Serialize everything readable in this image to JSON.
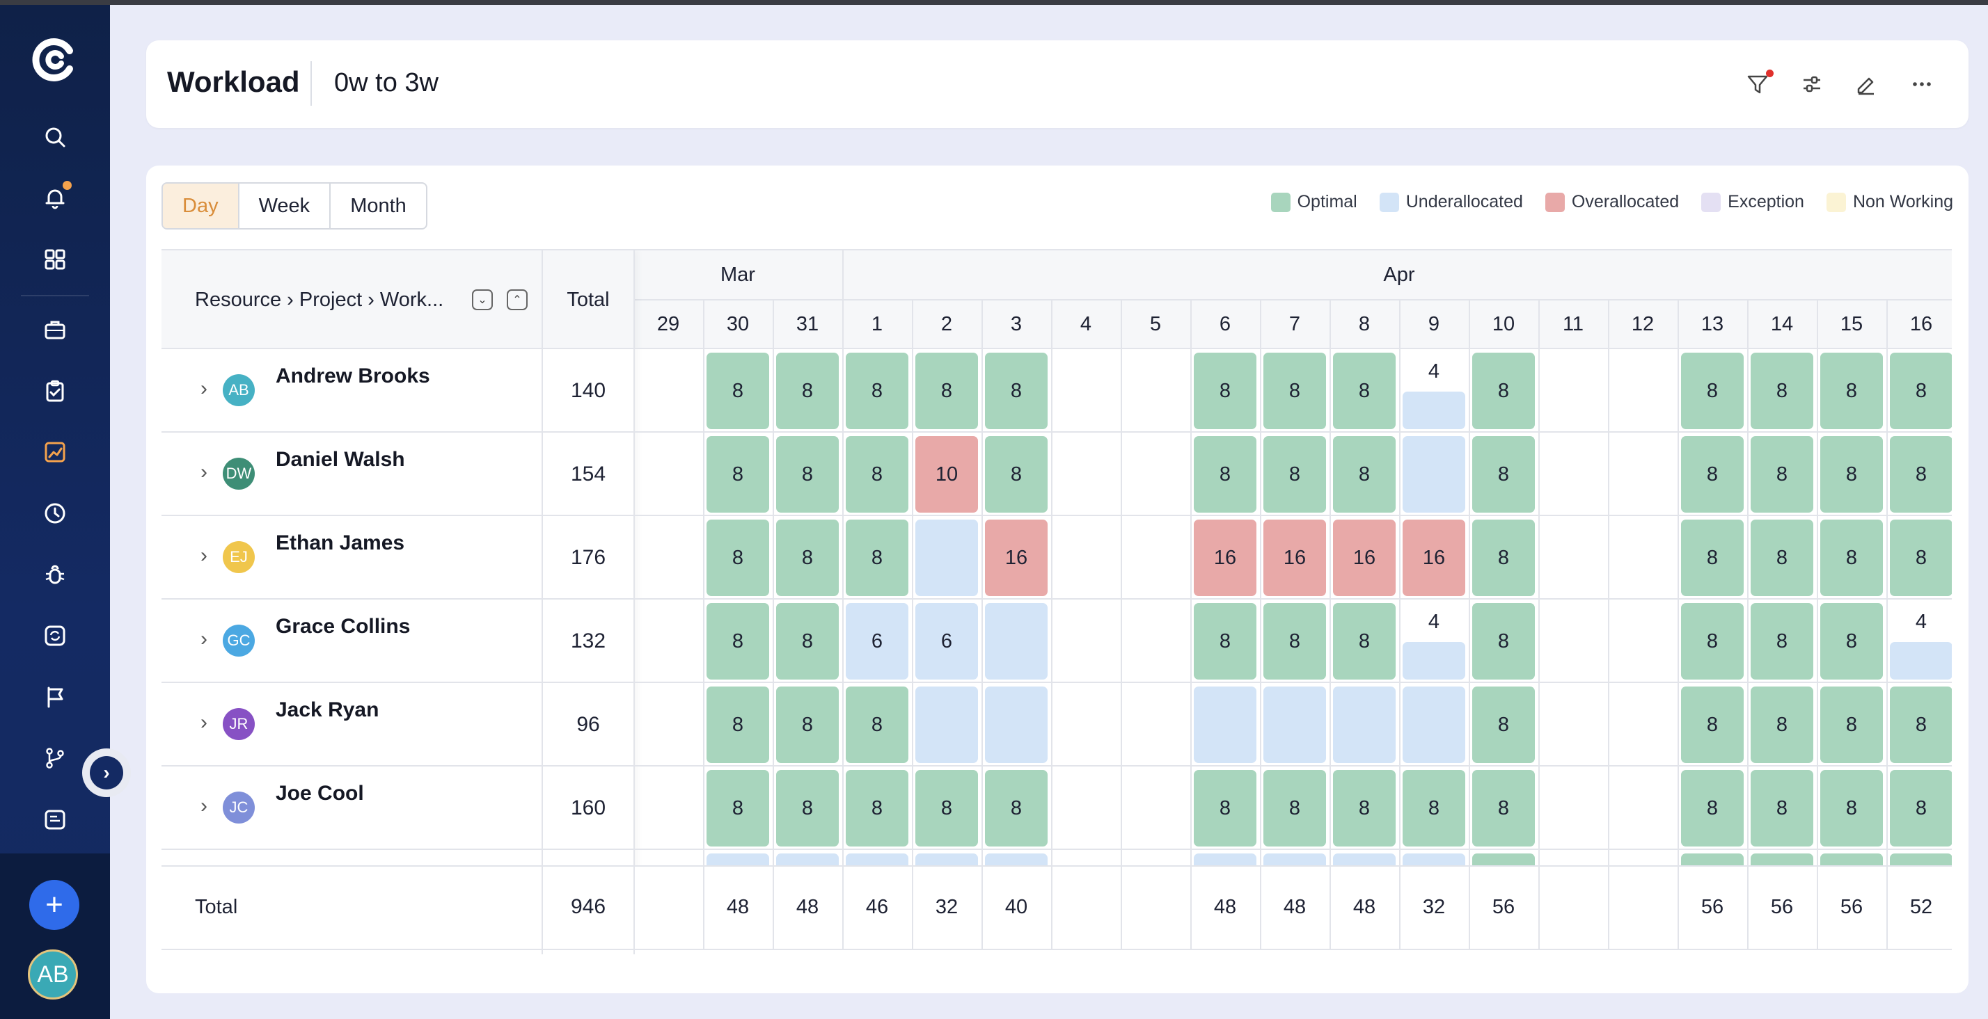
{
  "header": {
    "title": "Workload",
    "range": "0w to 3w"
  },
  "view_toggle": {
    "options": [
      "Day",
      "Week",
      "Month"
    ],
    "active": "Day"
  },
  "legend": [
    {
      "label": "Optimal",
      "color": "#a8d5bd"
    },
    {
      "label": "Underallocated",
      "color": "#d3e4f7"
    },
    {
      "label": "Overallocated",
      "color": "#e8a9a8"
    },
    {
      "label": "Exception",
      "color": "#e4e0f3"
    },
    {
      "label": "Non Working",
      "color": "#fbf3d4"
    }
  ],
  "table": {
    "resource_header": "Resource › Project › Work...",
    "total_header": "Total",
    "months": [
      {
        "label": "Mar",
        "start_index": 0,
        "span": 3
      },
      {
        "label": "Apr",
        "start_index": 3,
        "span": 16
      }
    ],
    "days": [
      "29",
      "30",
      "31",
      "1",
      "2",
      "3",
      "4",
      "5",
      "6",
      "7",
      "8",
      "9",
      "10",
      "11",
      "12",
      "13",
      "14",
      "15",
      "16"
    ],
    "rows": [
      {
        "name": "Andrew Brooks",
        "initials": "AB",
        "avatar_color": "#46b1c4",
        "total": "140",
        "cells": [
          [
            null,
            ""
          ],
          [
            "o",
            "8"
          ],
          [
            "o",
            "8"
          ],
          [
            "o",
            "8"
          ],
          [
            "o",
            "8"
          ],
          [
            "o",
            "8"
          ],
          [
            null,
            ""
          ],
          [
            null,
            ""
          ],
          [
            "o",
            "8"
          ],
          [
            "o",
            "8"
          ],
          [
            "o",
            "8"
          ],
          [
            "up",
            "4"
          ],
          [
            "o",
            "8"
          ],
          [
            null,
            ""
          ],
          [
            null,
            ""
          ],
          [
            "o",
            "8"
          ],
          [
            "o",
            "8"
          ],
          [
            "o",
            "8"
          ],
          [
            "o",
            "8"
          ]
        ]
      },
      {
        "name": "Daniel Walsh",
        "initials": "DW",
        "avatar_color": "#3e8e76",
        "total": "154",
        "cells": [
          [
            null,
            ""
          ],
          [
            "o",
            "8"
          ],
          [
            "o",
            "8"
          ],
          [
            "o",
            "8"
          ],
          [
            "x",
            "10"
          ],
          [
            "o",
            "8"
          ],
          [
            null,
            ""
          ],
          [
            null,
            ""
          ],
          [
            "o",
            "8"
          ],
          [
            "o",
            "8"
          ],
          [
            "o",
            "8"
          ],
          [
            "u",
            ""
          ],
          [
            "o",
            "8"
          ],
          [
            null,
            ""
          ],
          [
            null,
            ""
          ],
          [
            "o",
            "8"
          ],
          [
            "o",
            "8"
          ],
          [
            "o",
            "8"
          ],
          [
            "o",
            "8"
          ]
        ]
      },
      {
        "name": "Ethan James",
        "initials": "EJ",
        "avatar_color": "#f0c64c",
        "total": "176",
        "cells": [
          [
            null,
            ""
          ],
          [
            "o",
            "8"
          ],
          [
            "o",
            "8"
          ],
          [
            "o",
            "8"
          ],
          [
            "u",
            ""
          ],
          [
            "x",
            "16"
          ],
          [
            null,
            ""
          ],
          [
            null,
            ""
          ],
          [
            "x",
            "16"
          ],
          [
            "x",
            "16"
          ],
          [
            "x",
            "16"
          ],
          [
            "x",
            "16"
          ],
          [
            "o",
            "8"
          ],
          [
            null,
            ""
          ],
          [
            null,
            ""
          ],
          [
            "o",
            "8"
          ],
          [
            "o",
            "8"
          ],
          [
            "o",
            "8"
          ],
          [
            "o",
            "8"
          ]
        ]
      },
      {
        "name": "Grace Collins",
        "initials": "GC",
        "avatar_color": "#4ba8e2",
        "total": "132",
        "cells": [
          [
            null,
            ""
          ],
          [
            "o",
            "8"
          ],
          [
            "o",
            "8"
          ],
          [
            "u",
            "6"
          ],
          [
            "u",
            "6"
          ],
          [
            "u",
            ""
          ],
          [
            null,
            ""
          ],
          [
            null,
            ""
          ],
          [
            "o",
            "8"
          ],
          [
            "o",
            "8"
          ],
          [
            "o",
            "8"
          ],
          [
            "up",
            "4"
          ],
          [
            "o",
            "8"
          ],
          [
            null,
            ""
          ],
          [
            null,
            ""
          ],
          [
            "o",
            "8"
          ],
          [
            "o",
            "8"
          ],
          [
            "o",
            "8"
          ],
          [
            "up",
            "4"
          ]
        ]
      },
      {
        "name": "Jack Ryan",
        "initials": "JR",
        "avatar_color": "#8751c4",
        "total": "96",
        "cells": [
          [
            null,
            ""
          ],
          [
            "o",
            "8"
          ],
          [
            "o",
            "8"
          ],
          [
            "o",
            "8"
          ],
          [
            "u",
            ""
          ],
          [
            "u",
            ""
          ],
          [
            null,
            ""
          ],
          [
            null,
            ""
          ],
          [
            "u",
            ""
          ],
          [
            "u",
            ""
          ],
          [
            "u",
            ""
          ],
          [
            "u",
            ""
          ],
          [
            "o",
            "8"
          ],
          [
            null,
            ""
          ],
          [
            null,
            ""
          ],
          [
            "o",
            "8"
          ],
          [
            "o",
            "8"
          ],
          [
            "o",
            "8"
          ],
          [
            "o",
            "8"
          ]
        ]
      },
      {
        "name": "Joe Cool",
        "initials": "JC",
        "avatar_color": "#7f8fd9",
        "total": "160",
        "cells": [
          [
            null,
            ""
          ],
          [
            "o",
            "8"
          ],
          [
            "o",
            "8"
          ],
          [
            "o",
            "8"
          ],
          [
            "o",
            "8"
          ],
          [
            "o",
            "8"
          ],
          [
            null,
            ""
          ],
          [
            null,
            ""
          ],
          [
            "o",
            "8"
          ],
          [
            "o",
            "8"
          ],
          [
            "o",
            "8"
          ],
          [
            "o",
            "8"
          ],
          [
            "o",
            "8"
          ],
          [
            null,
            ""
          ],
          [
            null,
            ""
          ],
          [
            "o",
            "8"
          ],
          [
            "o",
            "8"
          ],
          [
            "o",
            "8"
          ],
          [
            "o",
            "8"
          ]
        ]
      }
    ],
    "partial_row_types": [
      null,
      "u",
      "u",
      "u",
      "u",
      "u",
      null,
      null,
      "u",
      "u",
      "u",
      "u",
      "o",
      null,
      null,
      "o",
      "o",
      "o",
      "o"
    ],
    "footer": {
      "label": "Total",
      "total": "946",
      "values": [
        "",
        "48",
        "48",
        "46",
        "32",
        "40",
        "",
        "",
        "48",
        "48",
        "48",
        "32",
        "56",
        "",
        "",
        "56",
        "56",
        "56",
        "52"
      ]
    }
  }
}
